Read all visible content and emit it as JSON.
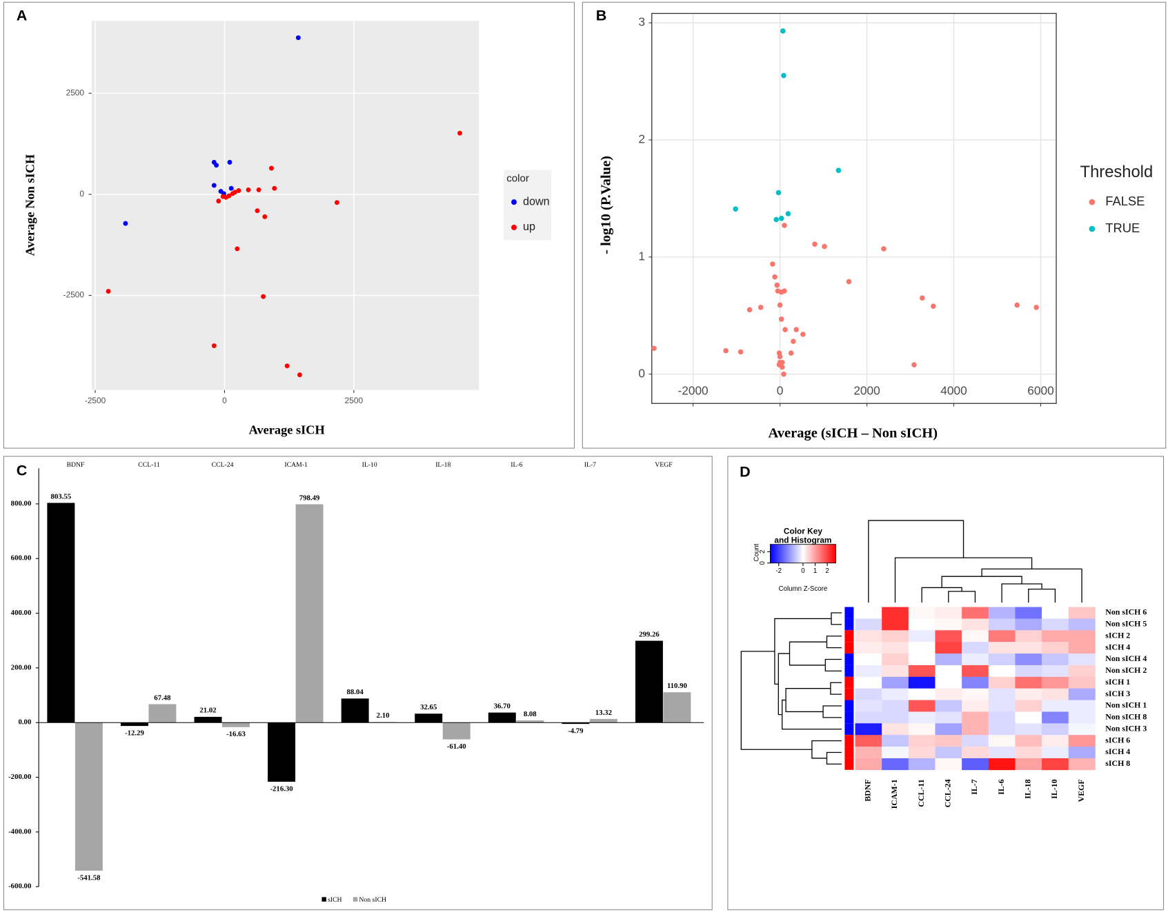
{
  "chart_data": [
    {
      "type": "scatter",
      "label": "A",
      "x_label": "Average sICH",
      "y_label": "Average Non sICH",
      "legend_title": "color",
      "grid": true,
      "xlim": [
        -2570,
        4920
      ],
      "ylim": [
        -4840,
        4290
      ],
      "xticks": [
        -2500,
        0,
        2500
      ],
      "yticks": [
        -2500,
        0,
        2500
      ],
      "series": [
        {
          "name": "down",
          "color": "#0000ff",
          "x": [
            1426,
            -202,
            -158,
            101,
            -202,
            130,
            -72,
            -14,
            -1915
          ],
          "y": [
            3874,
            793,
            720,
            793,
            221,
            148,
            74,
            18,
            -720
          ]
        },
        {
          "name": "up",
          "color": "#ff0000",
          "x": [
            4550,
            -2246,
            2174,
            907,
            965,
            461,
            662,
            274,
            -115,
            634,
            778,
            245,
            749,
            -202,
            1210,
            1454,
            86,
            29,
            158,
            202,
            -29
          ],
          "y": [
            1513,
            -2399,
            -203,
            646,
            148,
            111,
            111,
            92,
            -166,
            -406,
            -554,
            -1347,
            -2528,
            -3745,
            -4244,
            -4465,
            -37,
            -74,
            18,
            55,
            -55
          ]
        }
      ]
    },
    {
      "type": "scatter",
      "label": "B",
      "x_label": "Average (sICH – Non sICH)",
      "y_label": "- log10 (P.Value)",
      "legend_title": "Threshold",
      "grid": true,
      "xlim": [
        -2950,
        6358
      ],
      "ylim": [
        -0.25,
        3.08
      ],
      "xticks": [
        -2000,
        0,
        2000,
        4000,
        6000
      ],
      "yticks": [
        0,
        1,
        2,
        3
      ],
      "series": [
        {
          "name": "FALSE",
          "color": "#f8766d",
          "x": [
            102,
            801,
            1023,
            2387,
            1586,
            -170,
            -119,
            -68,
            -51,
            102,
            34,
            3274,
            3529,
            5456,
            5899,
            -699,
            -443,
            0,
            34,
            119,
            375,
            528,
            307,
            256,
            -17,
            0,
            0,
            51,
            -17,
            51,
            85,
            3086,
            -2898,
            -1245,
            -904
          ],
          "y": [
            1.27,
            1.11,
            1.09,
            1.07,
            0.79,
            0.94,
            0.83,
            0.76,
            0.71,
            0.71,
            0.7,
            0.65,
            0.58,
            0.59,
            0.57,
            0.55,
            0.57,
            0.59,
            0.47,
            0.38,
            0.38,
            0.34,
            0.28,
            0.18,
            0.18,
            0.15,
            0.1,
            0.1,
            0.08,
            0.06,
            0.0,
            0.08,
            0.22,
            0.2,
            0.19
          ]
        },
        {
          "name": "TRUE",
          "color": "#00bfc4",
          "x": [
            68,
            85,
            1347,
            -34,
            -1023,
            188,
            -85,
            34
          ],
          "y": [
            2.93,
            2.55,
            1.74,
            1.55,
            1.41,
            1.37,
            1.32,
            1.33
          ]
        }
      ]
    },
    {
      "type": "bar",
      "label": "C",
      "categories": [
        "BDNF",
        "CCL-11",
        "CCL-24",
        "ICAM-1",
        "IL-10",
        "IL-18",
        "IL-6",
        "IL-7",
        "VEGF"
      ],
      "ylim": [
        -600,
        930
      ],
      "yticks": [
        {
          "value": -600,
          "label": "-600.00"
        },
        {
          "value": -400,
          "label": "-400.00"
        },
        {
          "value": -200,
          "label": "-200.00"
        },
        {
          "value": 0,
          "label": "0.00"
        },
        {
          "value": 200,
          "label": "200.00"
        },
        {
          "value": 400,
          "label": "400.00"
        },
        {
          "value": 600,
          "label": "600.00"
        },
        {
          "value": 800,
          "label": "800.00"
        }
      ],
      "series": [
        {
          "name": "sICH",
          "color": "#000000",
          "values": [
            803.55,
            -12.29,
            21.02,
            -216.3,
            88.04,
            32.65,
            36.7,
            -4.79,
            299.26
          ],
          "value_labels": [
            "803.55",
            "-12.29",
            "21.02",
            "-216.30",
            "88.04",
            "32.65",
            "36.70",
            "-4.79",
            "299.26"
          ]
        },
        {
          "name": "Non sICH",
          "color": "#a6a6a6",
          "values": [
            -541.58,
            67.48,
            -16.63,
            798.49,
            2.1,
            -61.4,
            8.08,
            13.32,
            110.9
          ],
          "value_labels": [
            "-541.58",
            "67.48",
            "-16.63",
            "798.49",
            "2.10",
            "-61.40",
            "8.08",
            "13.32",
            "110.90"
          ]
        }
      ]
    },
    {
      "type": "heatmap",
      "label": "D",
      "columns": [
        "BDNF",
        "ICAM-1",
        "CCL-11",
        "CCL-24",
        "IL-7",
        "IL-6",
        "IL-18",
        "IL-10",
        "VEGF"
      ],
      "rows": [
        "Non sICH 6",
        "Non sICH 5",
        "sICH 2",
        "sICH 4",
        "Non sICH 4",
        "Non sICH 2",
        "sICH 1",
        "sICH 3",
        "Non sICH 1",
        "Non sICH 8",
        "Non sICH 3",
        "sICH 6",
        "sICH 4",
        "sICH 8"
      ],
      "row_colors": [
        "#0000ff",
        "#0000ff",
        "#ff0000",
        "#ff0000",
        "#0000ff",
        "#0000ff",
        "#ff0000",
        "#ff0000",
        "#0000ff",
        "#0000ff",
        "#0000ff",
        "#ff0000",
        "#ff0000",
        "#ff0000"
      ],
      "values": [
        [
          0,
          2.2,
          0.1,
          0.2,
          1.5,
          -0.8,
          -1.5,
          0,
          0.6
        ],
        [
          -0.4,
          2.2,
          0,
          0.1,
          0.3,
          -0.5,
          -0.9,
          -0.4,
          -0.7
        ],
        [
          0.3,
          0.5,
          -0.2,
          1.8,
          0.1,
          1.4,
          0.5,
          0.9,
          0.9
        ],
        [
          0.2,
          0.3,
          0,
          2.0,
          -0.4,
          0.3,
          0.3,
          0.5,
          0.9
        ],
        [
          0,
          0.5,
          0,
          -0.8,
          -0.2,
          -0.5,
          -1.2,
          -0.6,
          -0.3
        ],
        [
          -0.2,
          0.3,
          1.8,
          0,
          1.8,
          0,
          -0.4,
          -0.3,
          0.5
        ],
        [
          0,
          -1.0,
          -2.5,
          0,
          -1.3,
          0.5,
          1.5,
          1.1,
          0.6
        ],
        [
          -0.4,
          -0.2,
          0,
          0.2,
          0.1,
          -0.3,
          0.2,
          0.3,
          -0.9
        ],
        [
          -0.3,
          -0.4,
          1.8,
          -0.6,
          0.2,
          -0.3,
          0.5,
          -0.2,
          -0.2
        ],
        [
          -0.4,
          -0.4,
          -0.2,
          -0.3,
          0.8,
          -0.4,
          0,
          -1.3,
          -0.2
        ],
        [
          -2.4,
          0.3,
          0.1,
          -1.0,
          0.8,
          -0.4,
          -0.3,
          -0.5,
          -0.1
        ],
        [
          1.7,
          -0.6,
          0.5,
          0.6,
          -0.4,
          0.1,
          0.7,
          0.2,
          1.1
        ],
        [
          0.8,
          -0.1,
          0.4,
          -0.6,
          0.4,
          -0.3,
          0.4,
          -0.2,
          -0.9
        ],
        [
          0.9,
          -1.6,
          -0.8,
          0.1,
          -1.7,
          2.5,
          1.0,
          2.0,
          0.8
        ]
      ],
      "colors": {
        "low": "#0000ff",
        "mid": "#ffffff",
        "high": "#ff0000"
      },
      "key_title": [
        "Color Key",
        "and Histogram"
      ],
      "key_xlabel": "Column Z-Score",
      "key_ylabel": "Count",
      "key_xlim": [
        -2.7,
        2.7
      ],
      "key_xticks": [
        -2,
        0,
        1,
        2
      ],
      "key_ylim": [
        0,
        3.3
      ],
      "key_yticks": [
        0,
        2
      ]
    }
  ]
}
